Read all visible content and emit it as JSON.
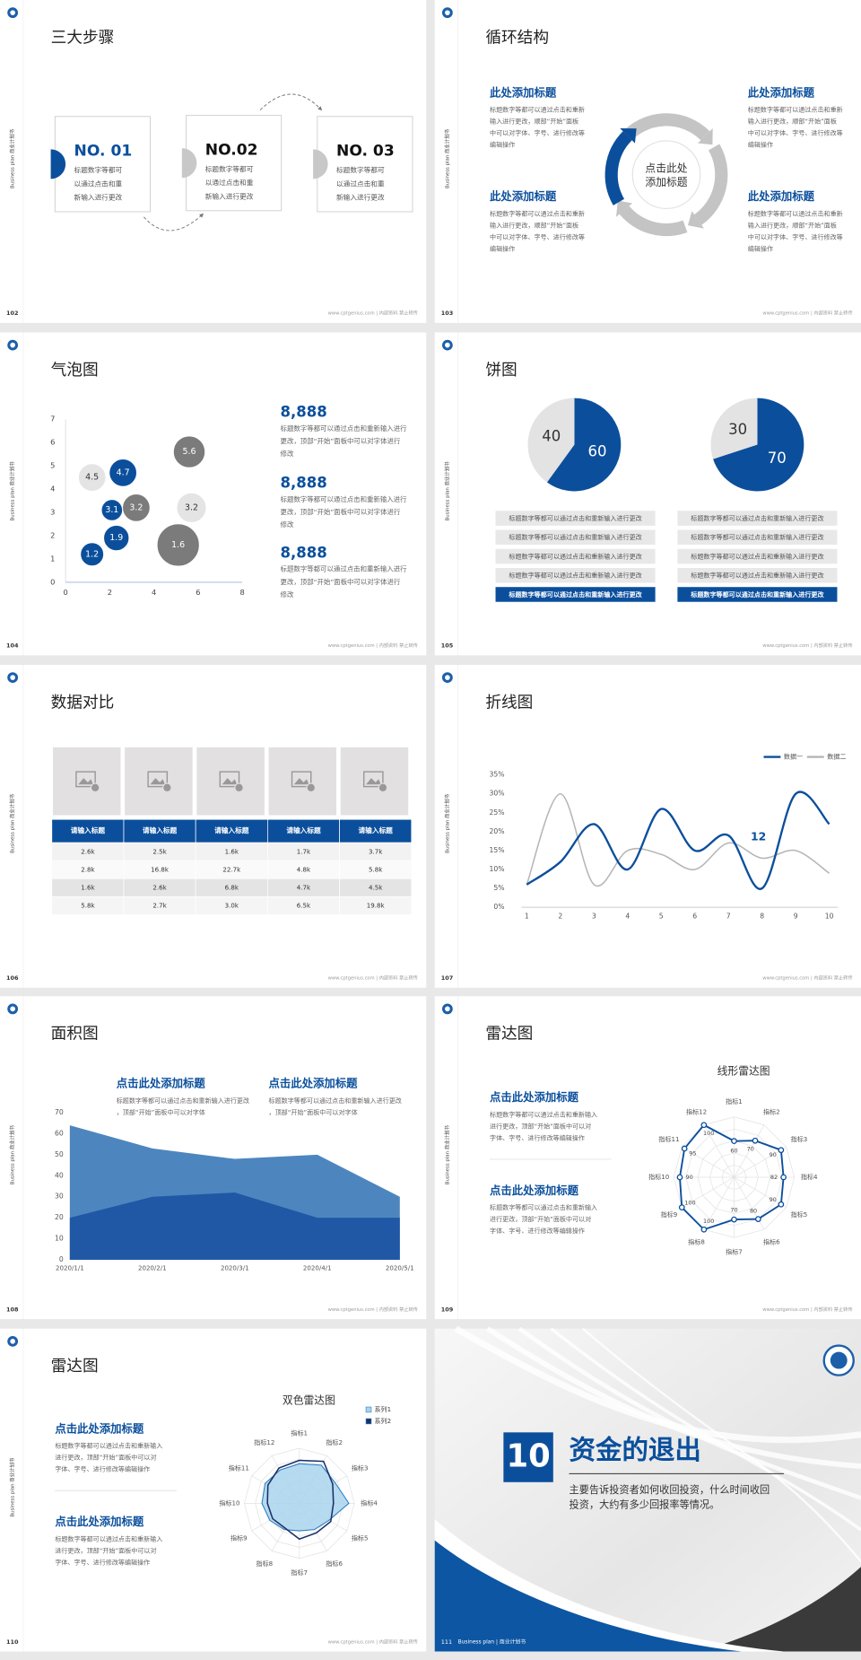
{
  "side_label": "Business plan 商业计划书",
  "footer": "www.cptgenius.com | 内部资料 禁止转传",
  "slides": [
    {
      "page": "102",
      "title": "三大步骤",
      "steps": [
        {
          "label": "NO. 01",
          "text": "标题数字等都可以通过点击和重新输入进行更改"
        },
        {
          "label": "NO.02",
          "text": "标题数字等都可以通过点击和重新输入进行更改"
        },
        {
          "label": "NO. 03",
          "text": "标题数字等都可以通过点击和重新输入进行更改"
        }
      ]
    },
    {
      "page": "103",
      "title": "循环结构",
      "center": "点击此处添加标题",
      "blocks": [
        {
          "heading": "此处添加标题",
          "text": "标题数字等都可以通过点击和重新输入进行更改，顺部“开始”面板中可以对字体、字号、进行修改等编辑操作"
        },
        {
          "heading": "此处添加标题",
          "text": "标题数字等都可以通过点击和重新输入进行更改，顺部“开始”面板中可以对字体、字号、进行修改等编辑操作"
        },
        {
          "heading": "此处添加标题",
          "text": "标题数字等都可以通过点击和重新输入进行更改，顺部“开始”面板中可以对字体、字号、进行修改等编辑操作"
        },
        {
          "heading": "此处添加标题",
          "text": "标题数字等都可以通过点击和重新输入进行更改，顺部“开始”面板中可以对字体、字号、进行修改等编辑操作"
        }
      ]
    },
    {
      "page": "104",
      "title": "气泡图",
      "chart_data": {
        "type": "bubble",
        "xlim": [
          0,
          8
        ],
        "xticks": [
          0,
          2,
          4,
          6,
          8
        ],
        "ylim": [
          0,
          7
        ],
        "yticks": [
          0,
          1,
          2,
          3,
          4,
          5,
          6,
          7
        ],
        "points": [
          {
            "x": 1.2,
            "y": 4.5,
            "size": 13,
            "color": "#e4e4e4"
          },
          {
            "x": 2.6,
            "y": 4.7,
            "size": 13,
            "color": "#0b4f9c"
          },
          {
            "x": 5.6,
            "y": 5.6,
            "size": 15,
            "color": "#7b7b7b"
          },
          {
            "x": 2.1,
            "y": 3.1,
            "size": 10,
            "color": "#0b4f9c"
          },
          {
            "x": 3.2,
            "y": 3.2,
            "size": 13,
            "color": "#7b7b7b"
          },
          {
            "x": 5.7,
            "y": 3.2,
            "size": 14,
            "color": "#e4e4e4"
          },
          {
            "x": 2.3,
            "y": 1.9,
            "size": 12,
            "color": "#0b4f9c"
          },
          {
            "x": 5.1,
            "y": 1.6,
            "size": 20,
            "color": "#7b7b7b"
          },
          {
            "x": 1.2,
            "y": 1.2,
            "size": 11,
            "color": "#0b4f9c"
          }
        ]
      },
      "notes": [
        {
          "value": "8,888",
          "text": "标题数字等都可以通过点击和重新输入进行更改，顶部“开始”面板中可以对字体进行修改"
        },
        {
          "value": "8,888",
          "text": "标题数字等都可以通过点击和重新输入进行更改，顶部“开始”面板中可以对字体进行修改"
        },
        {
          "value": "8,888",
          "text": "标题数字等都可以通过点击和重新输入进行更改，顶部“开始”面板中可以对字体进行修改"
        }
      ]
    },
    {
      "page": "105",
      "title": "饼图",
      "chart_data": [
        {
          "type": "pie",
          "values": [
            60,
            40
          ],
          "colors": [
            "#0b4f9c",
            "#e3e3e3"
          ]
        },
        {
          "type": "pie",
          "values": [
            70,
            30
          ],
          "colors": [
            "#0b4f9c",
            "#e3e3e3"
          ]
        }
      ],
      "items": [
        [
          "标题数字等都可以通过点击和重新输入进行更改",
          "标题数字等都可以通过点击和重新输入进行更改",
          "标题数字等都可以通过点击和重新输入进行更改",
          "标题数字等都可以通过点击和重新输入进行更改",
          "标题数字等都可以通过点击和重新输入进行更改"
        ],
        [
          "标题数字等都可以通过点击和重新输入进行更改",
          "标题数字等都可以通过点击和重新输入进行更改",
          "标题数字等都可以通过点击和重新输入进行更改",
          "标题数字等都可以通过点击和重新输入进行更改",
          "标题数字等都可以通过点击和重新输入进行更改"
        ]
      ]
    },
    {
      "page": "106",
      "title": "数据对比",
      "table": {
        "header": [
          "请输入标题",
          "请输入标题",
          "请输入标题",
          "请输入标题",
          "请输入标题"
        ],
        "rows": [
          [
            "2.6k",
            "2.5k",
            "1.6k",
            "1.7k",
            "3.7k"
          ],
          [
            "2.8k",
            "16.8k",
            "22.7k",
            "4.8k",
            "5.8k"
          ],
          [
            "1.6k",
            "2.6k",
            "6.8k",
            "4.7k",
            "4.5k"
          ],
          [
            "5.8k",
            "2.7k",
            "3.0k",
            "6.5k",
            "19.8k"
          ]
        ]
      }
    },
    {
      "page": "107",
      "title": "折线图",
      "chart_data": {
        "type": "line",
        "x": [
          1,
          2,
          3,
          4,
          5,
          6,
          7,
          8,
          9,
          10
        ],
        "xlim": [
          1,
          10
        ],
        "xticks": [
          1,
          2,
          3,
          4,
          5,
          6,
          7,
          8,
          9,
          10
        ],
        "ylim": [
          0,
          35
        ],
        "yticks": [
          {
            "value": 0,
            "label": "0%"
          },
          {
            "value": 5,
            "label": "5%"
          },
          {
            "value": 10,
            "label": "10%"
          },
          {
            "value": 15,
            "label": "15%"
          },
          {
            "value": 20,
            "label": "20%"
          },
          {
            "value": 25,
            "label": "25%"
          },
          {
            "value": 30,
            "label": "30%"
          },
          {
            "value": 35,
            "label": "35%"
          }
        ],
        "series": [
          {
            "name": "数据一",
            "color": "#0b4f9c",
            "values": [
              6,
              12,
              22,
              10,
              26,
              15,
              19,
              5,
              30,
              22
            ]
          },
          {
            "name": "数据二",
            "color": "#b5b5b5",
            "values": [
              6,
              30,
              6,
              15,
              14,
              10,
              17,
              13,
              15,
              9
            ]
          }
        ],
        "annotation": "12"
      }
    },
    {
      "page": "108",
      "title": "面积图",
      "blocks": [
        {
          "heading": "点击此处添加标题",
          "text": "标题数字等都可以通过点击和重新输入进行更改，顶部“开始”面板中可以对字体"
        },
        {
          "heading": "点击此处添加标题",
          "text": "标题数字等都可以通过点击和重新输入进行更改，顶部“开始”面板中可以对字体"
        }
      ],
      "chart_data": {
        "type": "area",
        "categories": [
          "2020/1/1",
          "2020/2/1",
          "2020/3/1",
          "2020/4/1",
          "2020/5/1"
        ],
        "ylim": [
          0,
          70
        ],
        "yticks": [
          0,
          10,
          20,
          30,
          40,
          50,
          60,
          70
        ],
        "series": [
          {
            "color": "#4d86bf",
            "values": [
              64,
              53,
              48,
              50,
              30
            ]
          },
          {
            "color": "#2058a5",
            "values": [
              20,
              30,
              32,
              20,
              20
            ]
          }
        ]
      }
    },
    {
      "page": "109",
      "title": "雷达图",
      "blocks": [
        {
          "heading": "点击此处添加标题",
          "text": "标题数字等都可以通过点击和重新输入进行更改，顶部“开始”面板中可以对字体、字号、进行修改等编辑操作"
        },
        {
          "heading": "点击此处添加标题",
          "text": "标题数字等都可以通过点击和重新输入进行更改，顶部“开始”面板中可以对字体、字号、进行修改等编辑操作"
        }
      ],
      "chart_data": {
        "type": "radar",
        "title": "线形雷达图",
        "categories": [
          "指标1",
          "指标2",
          "指标3",
          "指标4",
          "指标5",
          "指标6",
          "指标7",
          "指标8",
          "指标9",
          "指标10",
          "指标11",
          "指标12"
        ],
        "rlim": [
          0,
          100
        ],
        "series": [
          {
            "color": "#0b4f9c",
            "values": [
              60,
              70,
              90,
              82,
              90,
              80,
              70,
              100,
              100,
              90,
              95,
              100
            ]
          }
        ]
      }
    },
    {
      "page": "110",
      "title": "雷达图",
      "blocks": [
        {
          "heading": "点击此处添加标题",
          "text": "标题数字等都可以通过点击和重新输入进行更改，顶部“开始”面板中可以对字体、字号、进行修改等编辑操作"
        },
        {
          "heading": "点击此处添加标题",
          "text": "标题数字等都可以通过点击和重新输入进行更改，顶部“开始”面板中可以对字体、字号、进行修改等编辑操作"
        }
      ],
      "chart_data": {
        "type": "radar",
        "title": "双色雷达图",
        "categories": [
          "指标1",
          "指标2",
          "指标3",
          "指标4",
          "指标5",
          "指标6",
          "指标7",
          "指标8",
          "指标9",
          "指标10",
          "指标11",
          "指标12"
        ],
        "rlim": [
          0,
          100
        ],
        "series": [
          {
            "name": "系列1",
            "color": "#a9d4ec",
            "values": [
              72,
              80,
              75,
              90,
              62,
              55,
              50,
              55,
              62,
              68,
              72,
              70
            ]
          },
          {
            "name": "系列2",
            "color": "#1a2f6b",
            "values": [
              78,
              88,
              70,
              62,
              66,
              62,
              65,
              52,
              56,
              58,
              66,
              74
            ]
          }
        ]
      }
    },
    {
      "page": "111",
      "number": "10",
      "title": "资金的退出",
      "text": "主要告诉投资者如何收回投资，什么时间收回投资，大约有多少回报率等情况。",
      "footer": "Business plan | 商业计划书"
    }
  ]
}
